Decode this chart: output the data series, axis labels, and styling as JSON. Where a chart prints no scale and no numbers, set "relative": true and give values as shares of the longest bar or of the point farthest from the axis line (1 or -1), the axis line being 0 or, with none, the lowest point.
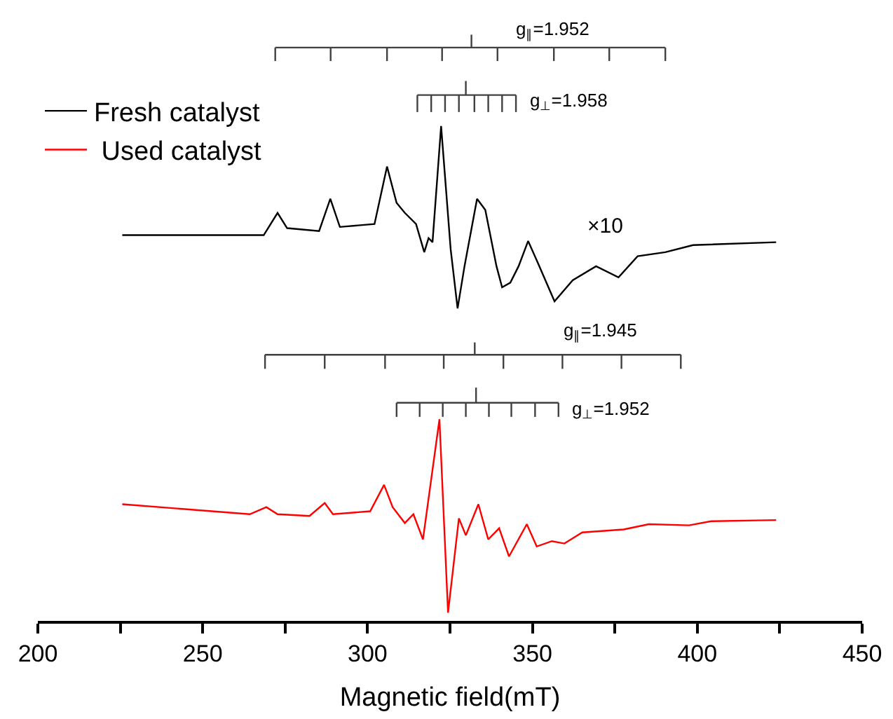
{
  "chart_data": {
    "type": "line",
    "relative": true,
    "xlabel": "Magnetic field(mT)",
    "xlim": [
      200,
      450
    ],
    "xticks": [
      200,
      {
        "value": 225,
        "label": null
      },
      250,
      {
        "value": 275,
        "label": null
      },
      300,
      {
        "value": 325,
        "label": null
      },
      350,
      {
        "value": 375,
        "label": null
      },
      400,
      {
        "value": 425,
        "label": null
      },
      450
    ],
    "legend": "top left",
    "marker": "none",
    "line_style": "solid",
    "series": [
      {
        "name": "Fresh catalyst",
        "color": "#000000",
        "x": [
          225.6,
          268.5,
          272.7,
          275.6,
          285.3,
          288.7,
          291.6,
          302.1,
          305.9,
          308.8,
          311.3,
          314.7,
          317.2,
          318.5,
          319.7,
          322.3,
          325.2,
          327.3,
          329.4,
          333.2,
          335.7,
          339.1,
          340.8,
          343.3,
          345.8,
          348.7,
          351.7,
          356.7,
          362.2,
          369.3,
          376.1,
          381.9,
          390.3,
          398.7,
          423.9
        ],
        "values": [
          0.658,
          0.658,
          0.696,
          0.67,
          0.665,
          0.72,
          0.672,
          0.677,
          0.775,
          0.713,
          0.696,
          0.677,
          0.629,
          0.653,
          0.646,
          0.844,
          0.634,
          0.533,
          0.605,
          0.72,
          0.701,
          0.605,
          0.569,
          0.577,
          0.605,
          0.648,
          0.61,
          0.545,
          0.581,
          0.605,
          0.586,
          0.622,
          0.629,
          0.641,
          0.646
        ]
      },
      {
        "name": " Used catalyst",
        "color": "#ff0000",
        "x": [
          225.6,
          264.3,
          269.3,
          272.7,
          282.4,
          287.0,
          289.5,
          300.8,
          305.0,
          307.6,
          311.3,
          313.9,
          316.8,
          321.8,
          324.4,
          327.7,
          329.8,
          333.6,
          336.6,
          339.9,
          342.9,
          348.3,
          351.3,
          355.9,
          359.7,
          365.1,
          377.7,
          385.3,
          397.5,
          404.2,
          423.9
        ],
        "values": [
          0.199,
          0.182,
          0.194,
          0.182,
          0.179,
          0.201,
          0.182,
          0.187,
          0.232,
          0.194,
          0.167,
          0.182,
          0.139,
          0.344,
          0.014,
          0.175,
          0.146,
          0.199,
          0.139,
          0.158,
          0.11,
          0.165,
          0.127,
          0.136,
          0.132,
          0.151,
          0.156,
          0.165,
          0.163,
          0.17,
          0.172
        ]
      },
      {
        "color": "#404040",
        "x": [
          272.0,
          390.3,
          null,
          272.0,
          272.0,
          null,
          288.8,
          288.8,
          null,
          305.9,
          305.9,
          null,
          322.6,
          322.6,
          null,
          339.4,
          339.4,
          null,
          356.5,
          356.5,
          null,
          373.3,
          373.3,
          null,
          390.3,
          390.3,
          null,
          331.5,
          331.5
        ],
        "values": [
          0.978,
          0.978,
          null,
          0.978,
          0.955,
          null,
          0.978,
          0.955,
          null,
          0.978,
          0.955,
          null,
          0.978,
          0.955,
          null,
          0.978,
          0.955,
          null,
          0.978,
          0.955,
          null,
          0.978,
          0.955,
          null,
          0.978,
          0.955,
          null,
          0.978,
          1.0
        ]
      },
      {
        "color": "#404040",
        "x": [
          315.1,
          345.0,
          null,
          315.1,
          315.1,
          null,
          319.3,
          319.3,
          null,
          323.5,
          323.5,
          null,
          327.7,
          327.7,
          null,
          332.4,
          332.4,
          null,
          336.6,
          336.6,
          null,
          340.8,
          340.8,
          null,
          345.0,
          345.0,
          null,
          329.8,
          329.8
        ],
        "values": [
          0.897,
          0.897,
          null,
          0.897,
          0.868,
          null,
          0.897,
          0.868,
          null,
          0.897,
          0.868,
          null,
          0.897,
          0.868,
          null,
          0.897,
          0.868,
          null,
          0.897,
          0.868,
          null,
          0.897,
          0.868,
          null,
          0.897,
          0.868,
          null,
          0.897,
          0.921
        ]
      },
      {
        "color": "#404040",
        "x": [
          268.9,
          395.0,
          null,
          268.9,
          268.9,
          null,
          287.0,
          287.0,
          null,
          305.3,
          305.3,
          null,
          323.1,
          323.1,
          null,
          341.2,
          341.2,
          null,
          359.1,
          359.1,
          null,
          377.0,
          377.0,
          null,
          395.0,
          395.0,
          null,
          332.5,
          332.5
        ],
        "values": [
          0.454,
          0.454,
          null,
          0.454,
          0.43,
          null,
          0.454,
          0.43,
          null,
          0.454,
          0.43,
          null,
          0.454,
          0.43,
          null,
          0.454,
          0.43,
          null,
          0.454,
          0.43,
          null,
          0.454,
          0.43,
          null,
          0.454,
          0.43,
          null,
          0.454,
          0.475
        ]
      },
      {
        "color": "#404040",
        "x": [
          308.8,
          357.9,
          null,
          308.8,
          308.8,
          null,
          315.8,
          315.8,
          null,
          322.8,
          322.8,
          null,
          329.8,
          329.8,
          null,
          336.8,
          336.8,
          null,
          343.6,
          343.6,
          null,
          350.8,
          350.8,
          null,
          357.9,
          357.9,
          null,
          332.9,
          332.9
        ],
        "values": [
          0.372,
          0.372,
          null,
          0.372,
          0.348,
          null,
          0.372,
          0.348,
          null,
          0.372,
          0.348,
          null,
          0.372,
          0.348,
          null,
          0.372,
          0.348,
          null,
          0.372,
          0.348,
          null,
          0.372,
          0.348,
          null,
          0.372,
          0.348,
          null,
          0.372,
          0.398
        ]
      }
    ],
    "annotations": [
      "g$_{∥}$=1.952",
      "g$_{⊥}$=1.958",
      "×10",
      "g$_{∥}$=1.945",
      "g$_{⊥}$=1.952"
    ]
  }
}
